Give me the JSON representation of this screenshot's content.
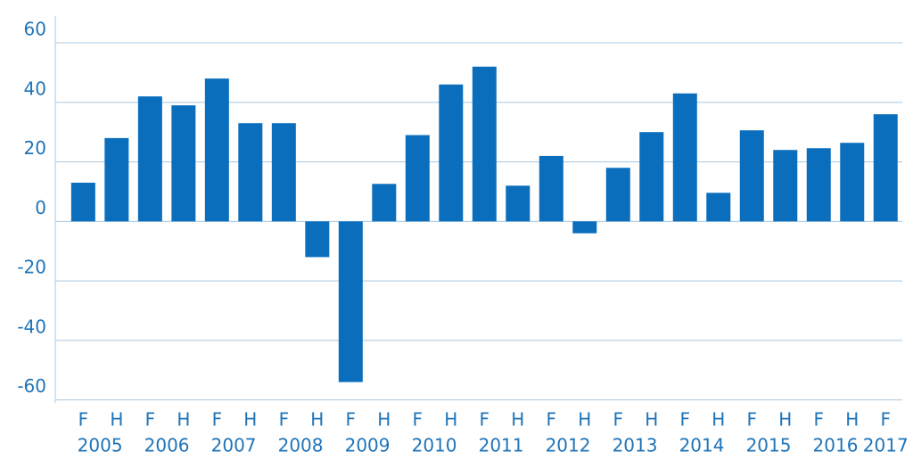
{
  "chart_data": {
    "type": "bar",
    "categories": [
      "F",
      "H",
      "F",
      "H",
      "F",
      "H",
      "F",
      "H",
      "F",
      "H",
      "F",
      "H",
      "F",
      "H",
      "F",
      "H",
      "F",
      "H",
      "F",
      "H",
      "F",
      "H",
      "F",
      "H",
      "F"
    ],
    "years": [
      "2005",
      "2006",
      "2007",
      "2008",
      "2009",
      "2010",
      "2011",
      "2012",
      "2013",
      "2014",
      "2015",
      "2016",
      "2017"
    ],
    "values": [
      13,
      28,
      42,
      39,
      48,
      33,
      33,
      -12,
      -54,
      12.6,
      29,
      46,
      52,
      12,
      22,
      -4,
      18,
      30,
      43,
      9.6,
      30.6,
      24,
      24.6,
      26.4,
      36
    ],
    "color": "#0a6ebd",
    "ylim": [
      -61,
      69
    ],
    "yticks": [
      -60,
      -40,
      -20,
      0,
      20,
      40,
      60
    ],
    "grid": true
  }
}
